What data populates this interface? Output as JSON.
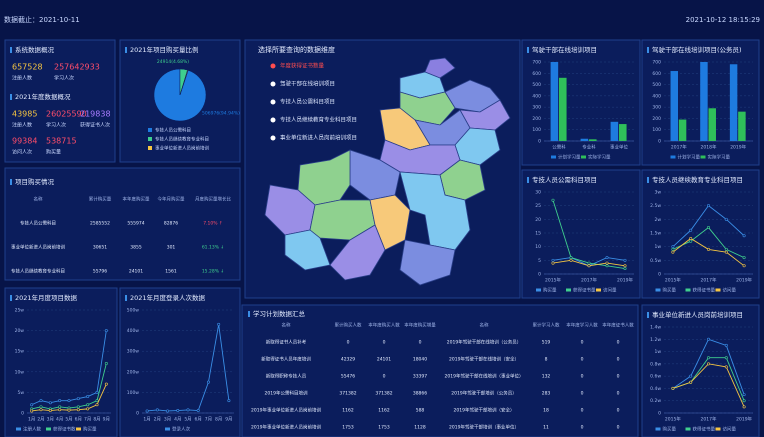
{
  "header": {
    "date_label": "数据截止：2021-10-11",
    "time": "2021-10-12 18:15:29"
  },
  "overview": {
    "system": {
      "title": "系统数据概况",
      "stats": [
        {
          "value": 657528,
          "label": "注册人数"
        },
        {
          "value": 257642933,
          "label": "学习人次"
        }
      ]
    },
    "year": {
      "title": "2021年度数据概况",
      "stats": [
        {
          "value": 43985,
          "label": "注册人数"
        },
        {
          "value": 26025590,
          "label": "学习人次"
        },
        {
          "value": 219838,
          "label": "获得证书人次"
        },
        {
          "value": 99384,
          "label": "访问人次"
        },
        {
          "value": 538715,
          "label": "购买量"
        }
      ]
    }
  },
  "map": {
    "title": "选择所要查询的数据维度",
    "options": [
      "年度获得证书数量",
      "驾驶干部在线培训项目",
      "专技人员公需科目项目",
      "专技人员继续教育专业科目项目",
      "事业单位新进人员岗前培训项目"
    ]
  },
  "purchase_table": {
    "title": "项目购买情况",
    "columns": [
      "名称",
      "累计购买量",
      "本年度购买量",
      "今年月购买量",
      "月度购买量增长比"
    ],
    "rows": [
      [
        "专技人员公需科目",
        2585552,
        555974,
        82876,
        "7.10% ↑"
      ],
      [
        "事业单位新进人员岗前培训",
        30651,
        3855,
        301,
        "61.13% ↓"
      ],
      [
        "专技人员继续教育专业科目",
        55796,
        24101,
        1561,
        "15.28% ↓"
      ]
    ]
  },
  "plan_table": {
    "title": "学习计划数据汇总",
    "left": {
      "columns": [
        "名称",
        "累计购买人数",
        "本年度购买人数",
        "本年度购买增量"
      ],
      "rows": [
        [
          "新取得证书人员补考",
          0,
          0,
          0
        ],
        [
          "新取得证书人员年度培训",
          42329,
          24101,
          18040
        ],
        [
          "新取得职称专技人员",
          55476,
          0,
          33397
        ],
        [
          "2019年公需科目培训",
          371382,
          371382,
          38866
        ],
        [
          "2019年事业单位新进人员岗前培训",
          1162,
          1162,
          588
        ],
        [
          "2019年事业单位新进人员岗前培训",
          1753,
          1753,
          1128
        ]
      ]
    },
    "right": {
      "columns": [
        "名称",
        "累计学习人数",
        "本年度学习人数",
        "本年度证书人数"
      ],
      "rows": [
        [
          "2019年驾驶干部在线培训（公务员）",
          519,
          0,
          0
        ],
        [
          "2019年驾驶干部在线培训（安全）",
          8,
          0,
          0
        ],
        [
          "2019年驾驶干部在线培训（事业单位）",
          132,
          0,
          0
        ],
        [
          "2019年驾驶干部培训（公务员）",
          283,
          0,
          0
        ],
        [
          "2019年驾驶干部培训（安全）",
          18,
          0,
          0
        ],
        [
          "2019年驾驶干部培训（事业单位）",
          11,
          0,
          0
        ]
      ]
    }
  },
  "chart_data": [
    {
      "type": "pie",
      "title": "2021年项目购买量比例",
      "categories": [
        "专技人员公需科目",
        "专技人员继续教育专业科目",
        "事业单位新进人员岗前培训"
      ],
      "values": [
        506976,
        24914,
        2100
      ],
      "value_labels": [
        "506976(94.94%)",
        "24914(4.68%)",
        null
      ],
      "colors": [
        "#1e7be0",
        "#3fcf8e",
        "#f5c542"
      ]
    },
    {
      "type": "bar",
      "title": "驾驶干部在线培训项目",
      "categories": [
        "公需科",
        "专业科",
        "事业单位"
      ],
      "ylim": [
        0,
        700
      ],
      "yticks": [
        0,
        100,
        200,
        300,
        400,
        500,
        600,
        700
      ],
      "grid": true,
      "series": [
        {
          "name": "计划学习量",
          "color": "#1e7be0",
          "values": [
            700,
            20,
            170
          ]
        },
        {
          "name": "实际学习量",
          "color": "#2fbf5a",
          "values": [
            560,
            15,
            150
          ]
        }
      ]
    },
    {
      "type": "bar",
      "title": "驾驶干部在线培训项目(公务员)",
      "categories": [
        "2017年",
        "2018年",
        "2019年"
      ],
      "ylim": [
        0,
        700
      ],
      "yticks": [
        0,
        100,
        200,
        300,
        400,
        500,
        600,
        700
      ],
      "grid": true,
      "series": [
        {
          "name": "计划学习量",
          "color": "#1e7be0",
          "values": [
            620,
            700,
            680
          ]
        },
        {
          "name": "实际学习量",
          "color": "#2fbf5a",
          "values": [
            190,
            290,
            260
          ]
        }
      ]
    },
    {
      "type": "line",
      "title": "专技人员公需科目项目",
      "categories": [
        "2015年",
        null,
        "2017年",
        null,
        "2019年"
      ],
      "ylim": [
        0,
        30
      ],
      "yticks": [
        0,
        5,
        10,
        15,
        20,
        25,
        30
      ],
      "grid": true,
      "series": [
        {
          "name": "购买量",
          "color": "#3a8ee6",
          "values": [
            5,
            6,
            3,
            6,
            5
          ]
        },
        {
          "name": "获得证书量",
          "color": "#3fcf8e",
          "values": [
            27,
            6,
            4,
            3,
            2
          ]
        },
        {
          "name": "访问量",
          "color": "#f5c542",
          "values": [
            4,
            5,
            3,
            4,
            3
          ]
        }
      ]
    },
    {
      "type": "line",
      "title": "专技人员继续教育专业科目项目",
      "categories": [
        "2015年",
        null,
        "2017年",
        null,
        "2019年"
      ],
      "ylim": [
        0,
        30000
      ],
      "yticks": [
        0,
        {
          "value": 5000,
          "label": "0.5w"
        },
        {
          "value": 10000,
          "label": "1w"
        },
        {
          "value": 15000,
          "label": "1.5w"
        },
        {
          "value": 20000,
          "label": "2w"
        },
        {
          "value": 25000,
          "label": "2.5w"
        },
        {
          "value": 30000,
          "label": "3w"
        }
      ],
      "grid": true,
      "series": [
        {
          "name": "购买量",
          "color": "#3a8ee6",
          "values": [
            10000,
            16000,
            25000,
            20000,
            14000
          ]
        },
        {
          "name": "获得证书量",
          "color": "#3fcf8e",
          "values": [
            9000,
            12000,
            17000,
            9000,
            6000
          ]
        },
        {
          "name": "访问量",
          "color": "#f5c542",
          "values": [
            8000,
            13000,
            9000,
            8000,
            3000
          ]
        }
      ]
    },
    {
      "type": "line",
      "title": "2021年月度项目数据",
      "categories": [
        "1月",
        "2月",
        "3月",
        "4月",
        "5月",
        "6月",
        "7月",
        "8月",
        "9月"
      ],
      "ylim": [
        0,
        250000
      ],
      "yticks": [
        0,
        {
          "value": 50000,
          "label": "5w"
        },
        {
          "value": 100000,
          "label": "10w"
        },
        {
          "value": 150000,
          "label": "15w"
        },
        {
          "value": 200000,
          "label": "20w"
        },
        {
          "value": 250000,
          "label": "25w"
        }
      ],
      "grid": true,
      "series": [
        {
          "name": "注册人数",
          "color": "#3a8ee6",
          "values": [
            20000,
            30000,
            25000,
            30000,
            30000,
            35000,
            40000,
            50000,
            200000
          ]
        },
        {
          "name": "获得证书数",
          "color": "#3fcf8e",
          "values": [
            10000,
            15000,
            10000,
            15000,
            12000,
            15000,
            20000,
            30000,
            120000
          ]
        },
        {
          "name": "购买量",
          "color": "#f5c542",
          "values": [
            5000,
            8000,
            6000,
            8000,
            7000,
            8000,
            10000,
            20000,
            70000
          ]
        }
      ]
    },
    {
      "type": "line",
      "title": "2021年月度登录人次数据",
      "categories": [
        "1月",
        "2月",
        "3月",
        "4月",
        "5月",
        "6月",
        "7月",
        "8月",
        "9月"
      ],
      "ylim": [
        0,
        5000000
      ],
      "yticks": [
        0,
        {
          "value": 1000000,
          "label": "100w"
        },
        {
          "value": 2000000,
          "label": "200w"
        },
        {
          "value": 3000000,
          "label": "300w"
        },
        {
          "value": 4000000,
          "label": "400w"
        },
        {
          "value": 5000000,
          "label": "500w"
        }
      ],
      "grid": true,
      "series": [
        {
          "name": "登录人次",
          "color": "#3a8ee6",
          "values": [
            100000,
            150000,
            100000,
            120000,
            150000,
            120000,
            1500000,
            4300000,
            600000
          ]
        }
      ]
    },
    {
      "type": "line",
      "title": "事业单位新进人员岗前培训项目",
      "categories": [
        "2015年",
        null,
        "2017年",
        null,
        "2019年"
      ],
      "ylim": [
        0,
        14000
      ],
      "yticks": [
        0,
        {
          "value": 2000,
          "label": "0.2w"
        },
        {
          "value": 4000,
          "label": "0.4w"
        },
        {
          "value": 6000,
          "label": "0.6w"
        },
        {
          "value": 8000,
          "label": "0.8w"
        },
        {
          "value": 10000,
          "label": "1w"
        },
        {
          "value": 12000,
          "label": "1.2w"
        },
        {
          "value": 14000,
          "label": "1.4w"
        }
      ],
      "grid": true,
      "series": [
        {
          "name": "购买量",
          "color": "#3a8ee6",
          "values": [
            4000,
            6000,
            12000,
            11000,
            3000
          ]
        },
        {
          "name": "获得证书量",
          "color": "#3fcf8e",
          "values": [
            4000,
            5000,
            9000,
            9000,
            2000
          ]
        },
        {
          "name": "访问量",
          "color": "#f5c542",
          "values": [
            4000,
            5000,
            8000,
            7500,
            1000
          ]
        }
      ]
    }
  ]
}
